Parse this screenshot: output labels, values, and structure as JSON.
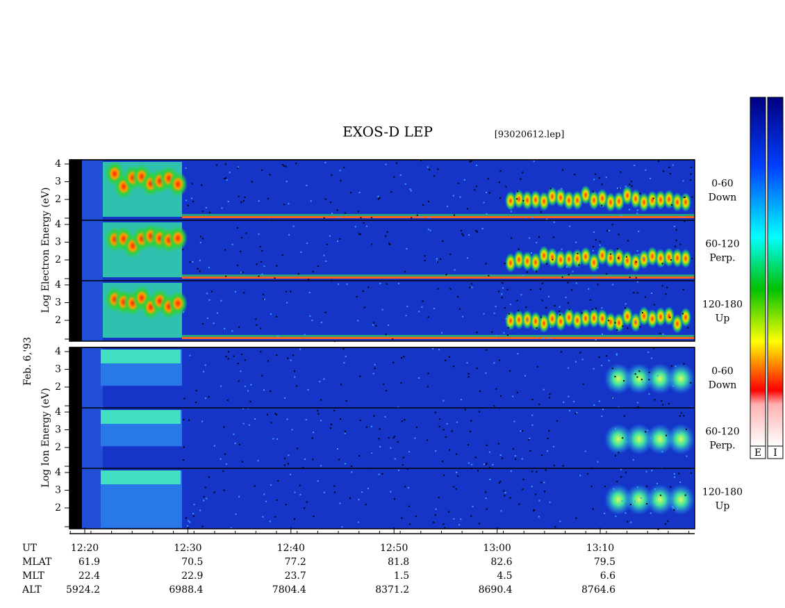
{
  "header": {
    "title": "EXOS-D LEP",
    "file": "[93020612.lep]"
  },
  "electron": {
    "axis_label": "Log Electron Energy (eV)",
    "panels": [
      {
        "label_top": "0-60",
        "label_bottom": "Down"
      },
      {
        "label_top": "60-120",
        "label_bottom": "Perp."
      },
      {
        "label_top": "120-180",
        "label_bottom": "Up"
      }
    ],
    "yticks": [
      "4",
      "3",
      "2"
    ]
  },
  "date": "Feb. 6,'93",
  "ion": {
    "axis_label": "Log Ion Energy (eV)",
    "panels": [
      {
        "label_top": "0-60",
        "label_bottom": "Down"
      },
      {
        "label_top": "60-120",
        "label_bottom": "Perp."
      },
      {
        "label_top": "120-180",
        "label_bottom": "Up"
      }
    ],
    "yticks": [
      "4",
      "3",
      "2"
    ]
  },
  "colorbars": [
    "E",
    "I"
  ],
  "ephemeris": {
    "rows": [
      {
        "name": "UT",
        "values": [
          "12:20",
          "12:30",
          "12:40",
          "12:50",
          "13:00",
          "13:10"
        ]
      },
      {
        "name": "MLAT",
        "values": [
          "61.9",
          "70.5",
          "77.2",
          "81.8",
          "82.6",
          "79.5"
        ]
      },
      {
        "name": "MLT",
        "values": [
          "22.4",
          "22.9",
          "23.7",
          "1.5",
          "4.5",
          "6.6"
        ]
      },
      {
        "name": "ALT",
        "values": [
          "5924.2",
          "6988.4",
          "7804.4",
          "8371.2",
          "8690.4",
          "8764.6"
        ]
      }
    ]
  }
}
